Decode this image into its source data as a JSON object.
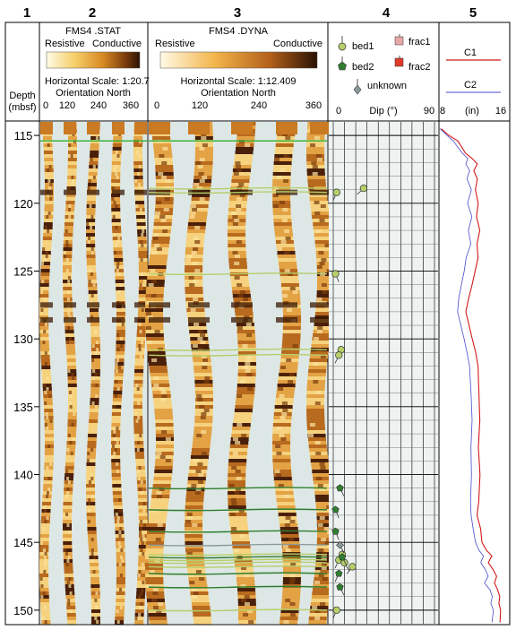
{
  "track_numbers": [
    "1",
    "2",
    "3",
    "4",
    "5"
  ],
  "depth": {
    "label_line1": "Depth",
    "label_line2": "(mbsf)",
    "range": [
      114,
      151
    ],
    "ticks": [
      115,
      120,
      125,
      130,
      135,
      140,
      145,
      150
    ]
  },
  "track2": {
    "title": "FMS4 .STAT",
    "resistive_label": "Resistive",
    "conductive_label": "Conductive",
    "scale_text": "Horizontal Scale: 1:20.7",
    "orientation_text": "Orientation North",
    "ticks": [
      "0",
      "120",
      "240",
      "360"
    ]
  },
  "track3": {
    "title": "FMS4 .DYNA",
    "resistive_label": "Resistive",
    "conductive_label": "Conductive",
    "scale_text": "Horizontal Scale:  1:12.409",
    "orientation_text": "Orientation North",
    "ticks": [
      "0",
      "120",
      "240",
      "360"
    ]
  },
  "colors": {
    "resistive": "#fff4cf",
    "mid": "#d9953a",
    "conductive": "#3a1a06",
    "background_blue": "#dde8e6",
    "bed1": "#b5cf6b",
    "bed2": "#2f7d2f",
    "unknown": "#8a9a9a",
    "frac1": "#e7a8a8",
    "frac2": "#e03a2a",
    "c1": "#d11a1a",
    "c2": "#4a4acf"
  },
  "chart_data": [
    {
      "type": "scatter",
      "title": "",
      "xlabel": "Dip (°)",
      "x_ticks": [
        "0",
        "90"
      ],
      "xlim": [
        0,
        90
      ],
      "ylim": [
        114,
        151
      ],
      "legend": [
        {
          "name": "bed1",
          "symbol": "circle"
        },
        {
          "name": "bed2",
          "symbol": "pentagon"
        },
        {
          "name": "unknown",
          "symbol": "diamond"
        },
        {
          "name": "frac1",
          "symbol": "square"
        },
        {
          "name": "frac2",
          "symbol": "square"
        }
      ],
      "series": [
        {
          "name": "bed1",
          "points": [
            [
              3,
              119.2
            ],
            [
              27,
              118.9
            ],
            [
              2,
              125.2
            ],
            [
              7,
              130.8
            ],
            [
              5,
              131.2
            ],
            [
              8,
              145.9
            ],
            [
              5,
              146.3
            ],
            [
              10,
              146.5
            ],
            [
              17,
              146.8
            ],
            [
              3,
              150.0
            ]
          ]
        },
        {
          "name": "bed2",
          "points": [
            [
              6,
              141.0
            ],
            [
              2,
              142.6
            ],
            [
              2,
              144.2
            ],
            [
              8,
              146.1
            ],
            [
              5,
              147.3
            ],
            [
              6,
              148.3
            ]
          ]
        },
        {
          "name": "unknown",
          "points": [
            [
              6,
              145.2
            ]
          ]
        }
      ]
    },
    {
      "type": "line",
      "title": "",
      "xlabel": "(in)",
      "x_ticks": [
        "8",
        "16"
      ],
      "xlim": [
        8,
        16
      ],
      "ylim": [
        114,
        151
      ],
      "series": [
        {
          "name": "C1",
          "points": [
            [
              8.2,
              114.5
            ],
            [
              9.0,
              115.0
            ],
            [
              10.1,
              115.4
            ],
            [
              10.6,
              115.9
            ],
            [
              11.0,
              116.3
            ],
            [
              11.8,
              116.7
            ],
            [
              12.3,
              117.1
            ],
            [
              11.9,
              117.6
            ],
            [
              12.4,
              118.2
            ],
            [
              12.1,
              119.0
            ],
            [
              12.5,
              120.0
            ],
            [
              12.2,
              121.0
            ],
            [
              12.6,
              122.0
            ],
            [
              12.3,
              123.0
            ],
            [
              12.4,
              124.0
            ],
            [
              12.1,
              125.0
            ],
            [
              11.7,
              126.0
            ],
            [
              11.3,
              127.0
            ],
            [
              11.0,
              128.0
            ],
            [
              11.4,
              129.0
            ],
            [
              11.8,
              130.0
            ],
            [
              12.1,
              131.0
            ],
            [
              12.4,
              132.0
            ],
            [
              12.5,
              134.0
            ],
            [
              12.6,
              136.0
            ],
            [
              12.5,
              138.0
            ],
            [
              12.6,
              140.0
            ],
            [
              12.5,
              142.0
            ],
            [
              12.3,
              143.0
            ],
            [
              12.7,
              144.0
            ],
            [
              12.9,
              145.0
            ],
            [
              13.4,
              145.6
            ],
            [
              14.0,
              146.0
            ],
            [
              13.6,
              146.5
            ],
            [
              14.2,
              147.0
            ],
            [
              14.6,
              147.5
            ],
            [
              14.3,
              148.0
            ],
            [
              14.7,
              148.5
            ],
            [
              15.0,
              149.0
            ],
            [
              14.8,
              149.5
            ],
            [
              15.1,
              150.0
            ],
            [
              15.0,
              150.9
            ]
          ]
        },
        {
          "name": "C2",
          "points": [
            [
              8.0,
              114.5
            ],
            [
              8.8,
              115.0
            ],
            [
              9.5,
              115.4
            ],
            [
              10.0,
              115.8
            ],
            [
              10.6,
              116.3
            ],
            [
              11.3,
              116.7
            ],
            [
              11.0,
              117.1
            ],
            [
              11.5,
              117.6
            ],
            [
              11.1,
              118.2
            ],
            [
              11.6,
              119.0
            ],
            [
              11.2,
              120.0
            ],
            [
              11.7,
              121.0
            ],
            [
              11.3,
              122.0
            ],
            [
              11.6,
              123.0
            ],
            [
              11.0,
              124.0
            ],
            [
              10.8,
              125.0
            ],
            [
              10.5,
              126.0
            ],
            [
              10.2,
              127.0
            ],
            [
              10.0,
              128.0
            ],
            [
              10.4,
              129.0
            ],
            [
              10.8,
              130.0
            ],
            [
              11.2,
              131.0
            ],
            [
              11.5,
              132.0
            ],
            [
              11.6,
              134.0
            ],
            [
              11.7,
              136.0
            ],
            [
              11.6,
              138.0
            ],
            [
              11.7,
              140.0
            ],
            [
              11.5,
              142.0
            ],
            [
              11.6,
              143.0
            ],
            [
              11.9,
              144.0
            ],
            [
              12.1,
              145.0
            ],
            [
              12.6,
              145.6
            ],
            [
              13.0,
              146.0
            ],
            [
              12.8,
              146.5
            ],
            [
              13.3,
              147.0
            ],
            [
              13.6,
              147.5
            ],
            [
              13.2,
              148.0
            ],
            [
              13.8,
              148.5
            ],
            [
              14.1,
              149.0
            ],
            [
              13.9,
              149.5
            ],
            [
              14.2,
              150.0
            ],
            [
              14.0,
              150.9
            ]
          ]
        }
      ]
    }
  ]
}
